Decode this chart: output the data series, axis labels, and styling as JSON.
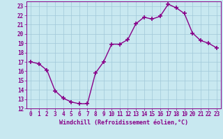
{
  "x": [
    0,
    1,
    2,
    3,
    4,
    5,
    6,
    7,
    8,
    9,
    10,
    11,
    12,
    13,
    14,
    15,
    16,
    17,
    18,
    19,
    20,
    21,
    22,
    23
  ],
  "y": [
    17,
    16.8,
    16.1,
    13.9,
    13.1,
    12.7,
    12.5,
    12.5,
    15.8,
    17.0,
    18.9,
    18.9,
    19.4,
    21.1,
    21.8,
    21.6,
    21.9,
    23.2,
    22.8,
    22.2,
    20.1,
    19.3,
    19.0,
    18.5
  ],
  "line_color": "#880088",
  "marker": "+",
  "markersize": 4,
  "xlabel": "Windchill (Refroidissement éolien,°C)",
  "xlim": [
    -0.5,
    23.5
  ],
  "ylim": [
    12,
    23.5
  ],
  "yticks": [
    12,
    13,
    14,
    15,
    16,
    17,
    18,
    19,
    20,
    21,
    22,
    23
  ],
  "xticks": [
    0,
    1,
    2,
    3,
    4,
    5,
    6,
    7,
    8,
    9,
    10,
    11,
    12,
    13,
    14,
    15,
    16,
    17,
    18,
    19,
    20,
    21,
    22,
    23
  ],
  "background_color": "#c8e8f0",
  "grid_color": "#a0c8d8",
  "text_color": "#880088",
  "label_fontsize": 6.0,
  "tick_fontsize": 5.5,
  "linewidth": 1.0
}
